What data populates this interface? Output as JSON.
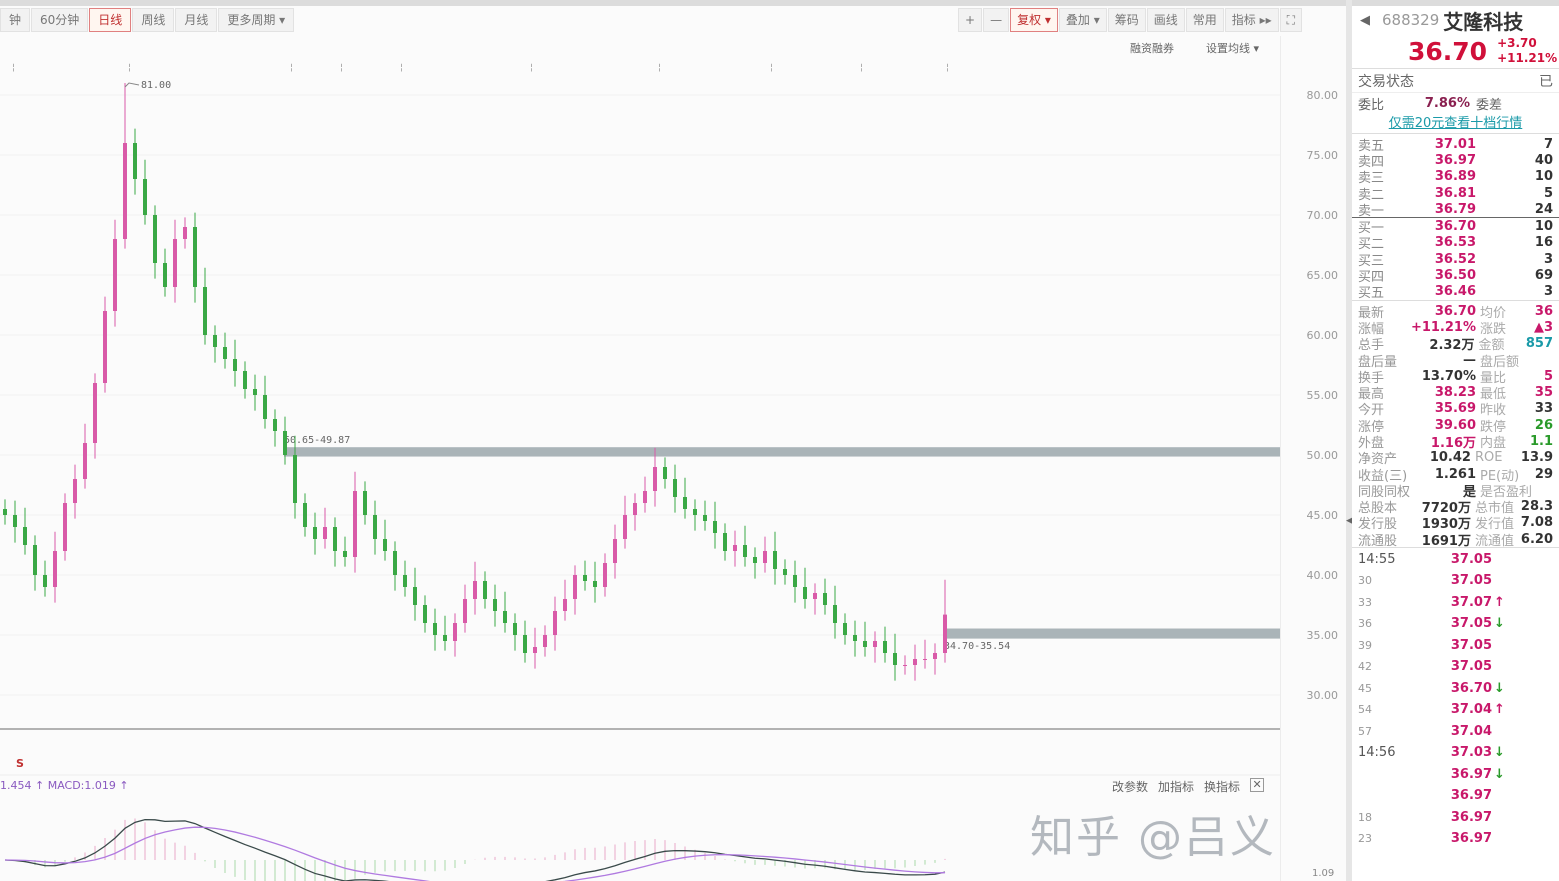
{
  "toolbar": {
    "periods": [
      "钟",
      "60分钟",
      "日线",
      "周线",
      "月线",
      "更多周期 ▾"
    ],
    "active": "日线",
    "right": [
      "+",
      "—",
      "复权 ▾",
      "叠加 ▾",
      "筹码",
      "画线",
      "常用",
      "指标 ▸▸",
      "⛶"
    ]
  },
  "subbar": {
    "margin": "融资融券",
    "ma": "设置均线 ▾"
  },
  "stock": {
    "back": "◀",
    "code": "688329",
    "name": "艾隆科技",
    "price": "36.70",
    "change": "+3.70",
    "pct": "+11.21%"
  },
  "status": {
    "label": "交易状态",
    "value": "已"
  },
  "ratio": {
    "label": "委比",
    "value": "7.86%",
    "diff_label": "委差"
  },
  "promo_link": "仅需20元查看十档行情",
  "asks": [
    {
      "l": "卖五",
      "p": "37.01",
      "v": "7"
    },
    {
      "l": "卖四",
      "p": "36.97",
      "v": "40"
    },
    {
      "l": "卖三",
      "p": "36.89",
      "v": "10"
    },
    {
      "l": "卖二",
      "p": "36.81",
      "v": "5"
    },
    {
      "l": "卖一",
      "p": "36.79",
      "v": "24"
    }
  ],
  "bids": [
    {
      "l": "买一",
      "p": "36.70",
      "v": "10"
    },
    {
      "l": "买二",
      "p": "36.53",
      "v": "16"
    },
    {
      "l": "买三",
      "p": "36.52",
      "v": "3"
    },
    {
      "l": "买四",
      "p": "36.50",
      "v": "69"
    },
    {
      "l": "买五",
      "p": "36.46",
      "v": "3"
    }
  ],
  "stats": [
    {
      "a": "最新",
      "b": "36.70",
      "bc": "red",
      "c": "均价",
      "d": "36",
      "dc": "red"
    },
    {
      "a": "涨幅",
      "b": "+11.21%",
      "bc": "red",
      "c": "涨跌",
      "d": "▲3",
      "dc": "red"
    },
    {
      "a": "总手",
      "b": "2.32万",
      "bc": "dark",
      "c": "金额",
      "d": "857",
      "dc": "cyan"
    },
    {
      "a": "盘后量",
      "b": "—",
      "bc": "dark",
      "c": "盘后额",
      "d": "",
      "dc": "dark"
    },
    {
      "a": "换手",
      "b": "13.70%",
      "bc": "dark",
      "c": "量比",
      "d": "5",
      "dc": "red"
    },
    {
      "a": "最高",
      "b": "38.23",
      "bc": "red",
      "c": "最低",
      "d": "35",
      "dc": "red"
    },
    {
      "a": "今开",
      "b": "35.69",
      "bc": "red",
      "c": "昨收",
      "d": "33",
      "dc": "dark"
    },
    {
      "a": "涨停",
      "b": "39.60",
      "bc": "red",
      "c": "跌停",
      "d": "26",
      "dc": "grn"
    },
    {
      "a": "外盘",
      "b": "1.16万",
      "bc": "red",
      "c": "内盘",
      "d": "1.1",
      "dc": "grn"
    },
    {
      "a": "净资产",
      "b": "10.42",
      "bc": "dark",
      "c": "ROE",
      "d": "13.9",
      "dc": "dark"
    },
    {
      "a": "收益(三)",
      "b": "1.261",
      "bc": "dark",
      "c": "PE(动)",
      "d": "29",
      "dc": "dark"
    },
    {
      "a": "同股同权",
      "b": "是",
      "bc": "dark",
      "c": "是否盈利",
      "d": "",
      "dc": "dark"
    },
    {
      "a": "总股本",
      "b": "7720万",
      "bc": "dark",
      "c": "总市值",
      "d": "28.3",
      "dc": "dark"
    },
    {
      "a": "发行股",
      "b": "1930万",
      "bc": "dark",
      "c": "发行值",
      "d": "7.08",
      "dc": "dark"
    },
    {
      "a": "流通股",
      "b": "1691万",
      "bc": "dark",
      "c": "流通值",
      "d": "6.20",
      "dc": "dark"
    }
  ],
  "ticks": [
    {
      "t": "14:55",
      "p": "37.05",
      "m": ""
    },
    {
      "t": "30",
      "p": "37.05",
      "m": ""
    },
    {
      "t": "33",
      "p": "37.07",
      "m": "up"
    },
    {
      "t": "36",
      "p": "37.05",
      "m": "dn"
    },
    {
      "t": "39",
      "p": "37.05",
      "m": ""
    },
    {
      "t": "42",
      "p": "37.05",
      "m": ""
    },
    {
      "t": "45",
      "p": "36.70",
      "m": "dn"
    },
    {
      "t": "54",
      "p": "37.04",
      "m": "up"
    },
    {
      "t": "57",
      "p": "37.04",
      "m": ""
    },
    {
      "t": "14:56",
      "p": "37.03",
      "m": "dn"
    },
    {
      "t": "",
      "p": "36.97",
      "m": "dn"
    },
    {
      "t": "",
      "p": "36.97",
      "m": ""
    },
    {
      "t": "18",
      "p": "36.97",
      "m": ""
    },
    {
      "t": "23",
      "p": "36.97",
      "m": ""
    }
  ],
  "indicator": {
    "label": "1.454 ↑ MACD:1.019 ↑",
    "marker": "S",
    "buttons": [
      "改参数",
      "加指标",
      "换指标"
    ],
    "close": "✕",
    "axis_label": "1.09"
  },
  "watermark": "知乎 @吕义",
  "colors": {
    "up": "#d95aa8",
    "down": "#3aa845",
    "band": "#aab4b8",
    "price": "#d0103a"
  },
  "chart_data": {
    "type": "candlestick",
    "ylim": [
      30,
      80
    ],
    "yticks": [
      "80.00",
      "75.00",
      "70.00",
      "65.00",
      "60.00",
      "55.00",
      "50.00",
      "45.00",
      "40.00",
      "35.00",
      "30.00"
    ],
    "closes": [
      45,
      44,
      42.5,
      40,
      39,
      42,
      46,
      48,
      51,
      56,
      62,
      68,
      76,
      73,
      70,
      66,
      64,
      68,
      69,
      64,
      60,
      59,
      58,
      57,
      55.5,
      55,
      53,
      52,
      50,
      46,
      44,
      43,
      44,
      42,
      41.5,
      47,
      45,
      43,
      42,
      40,
      39,
      37.5,
      36,
      35,
      34.5,
      36,
      38,
      39.5,
      38,
      37,
      36,
      35,
      33.5,
      34,
      35,
      37,
      38,
      40,
      39.5,
      39,
      41,
      43,
      45,
      46,
      47,
      49,
      48,
      46.5,
      45.5,
      45,
      44.5,
      43.5,
      42,
      42.5,
      41.5,
      41,
      42,
      40.5,
      40,
      39,
      38,
      38.5,
      37.5,
      36,
      35,
      34.5,
      34,
      34.5,
      33.5,
      32.5,
      32.5,
      33,
      33,
      33.5,
      36.7
    ],
    "peak": {
      "value": 81.0,
      "label": "81.00"
    },
    "last_high": 39.6,
    "zones": [
      {
        "low": 49.87,
        "high": 50.65,
        "label": "50.65-49.87",
        "from": "index 28"
      },
      {
        "low": 34.7,
        "high": 35.54,
        "label": "34.70-35.54",
        "from": "last"
      }
    ]
  }
}
